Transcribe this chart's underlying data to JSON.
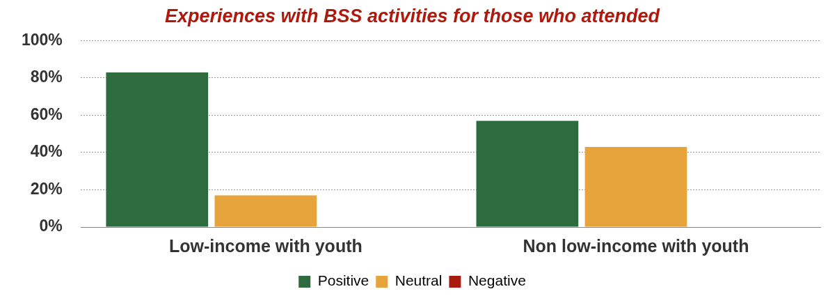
{
  "chart_data": {
    "type": "bar",
    "title": "Experiences with BSS activities for those who attended",
    "categories": [
      "Low-income with youth",
      "Non low-income with youth"
    ],
    "series": [
      {
        "name": "Positive",
        "color": "#2e6b3f",
        "values": [
          83,
          57
        ]
      },
      {
        "name": "Neutral",
        "color": "#e8a43c",
        "values": [
          17,
          43
        ]
      },
      {
        "name": "Negative",
        "color": "#a81b0e",
        "values": [
          0,
          0
        ]
      }
    ],
    "ylim": [
      0,
      100
    ],
    "yticks": [
      {
        "value": 0,
        "label": "0%"
      },
      {
        "value": 20,
        "label": "20%"
      },
      {
        "value": 40,
        "label": "40%"
      },
      {
        "value": 60,
        "label": "60%"
      },
      {
        "value": 80,
        "label": "80%"
      },
      {
        "value": 100,
        "label": "100%"
      }
    ],
    "grid": "y",
    "legend": "bottom"
  }
}
